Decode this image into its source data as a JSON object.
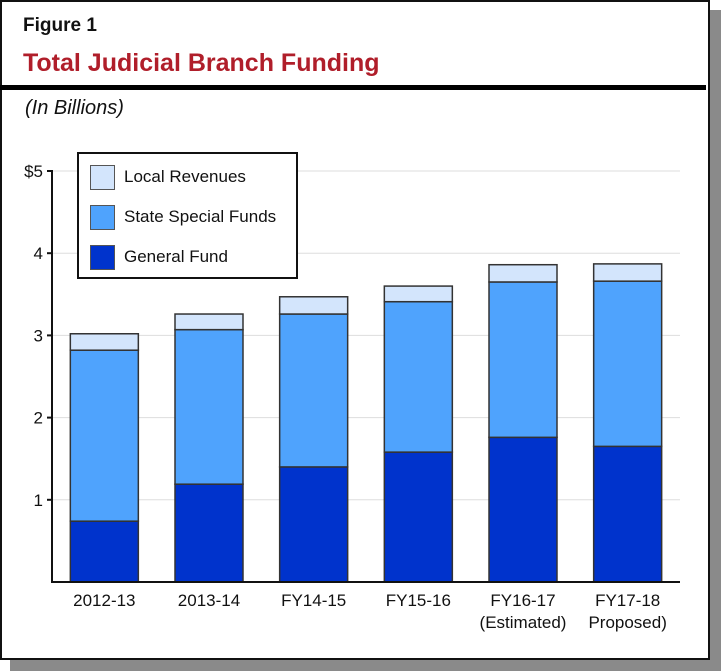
{
  "figure": {
    "label": "Figure 1",
    "title": "Total Judicial Branch Funding",
    "subtitle": "(In Billions)"
  },
  "colors": {
    "title": "#b01e2a",
    "local_revenues": "#d3e5fc",
    "state_special_funds": "#4fa3fd",
    "general_fund": "#0033cc",
    "gridline": "#dddddd"
  },
  "legend": {
    "items": [
      {
        "label": "Local Revenues",
        "color": "#d3e5fc"
      },
      {
        "label": "State Special Funds",
        "color": "#4fa3fd"
      },
      {
        "label": "General Fund",
        "color": "#0033cc"
      }
    ]
  },
  "axis": {
    "y_ticks": [
      "$5",
      "4",
      "3",
      "2",
      "1"
    ]
  },
  "chart_data": {
    "type": "bar",
    "stacked": true,
    "title": "Total Judicial Branch Funding",
    "subtitle": "(In Billions)",
    "xlabel": "",
    "ylabel": "",
    "ylim": [
      0,
      5
    ],
    "y_ticks": [
      1,
      2,
      3,
      4,
      5
    ],
    "y_tick_labels": [
      "1",
      "2",
      "3",
      "4",
      "$5"
    ],
    "grid": true,
    "legend_position": "upper-left",
    "categories": [
      "2012-13",
      "2013-14",
      "FY14-15",
      "FY15-16",
      "FY16-17 (Estimated)",
      "FY17-18 Proposed)"
    ],
    "category_lines": [
      [
        "2012-13"
      ],
      [
        "2013-14"
      ],
      [
        "FY14-15"
      ],
      [
        "FY15-16"
      ],
      [
        "FY16-17",
        "(Estimated)"
      ],
      [
        "FY17-18",
        "Proposed)"
      ]
    ],
    "series": [
      {
        "name": "General Fund",
        "values": [
          0.74,
          1.19,
          1.4,
          1.58,
          1.76,
          1.65
        ]
      },
      {
        "name": "State Special Funds",
        "values": [
          2.08,
          1.88,
          1.86,
          1.83,
          1.89,
          2.01
        ]
      },
      {
        "name": "Local Revenues",
        "values": [
          0.2,
          0.19,
          0.21,
          0.19,
          0.21,
          0.21
        ]
      }
    ],
    "totals": [
      3.02,
      3.26,
      3.47,
      3.6,
      3.86,
      3.87
    ]
  }
}
